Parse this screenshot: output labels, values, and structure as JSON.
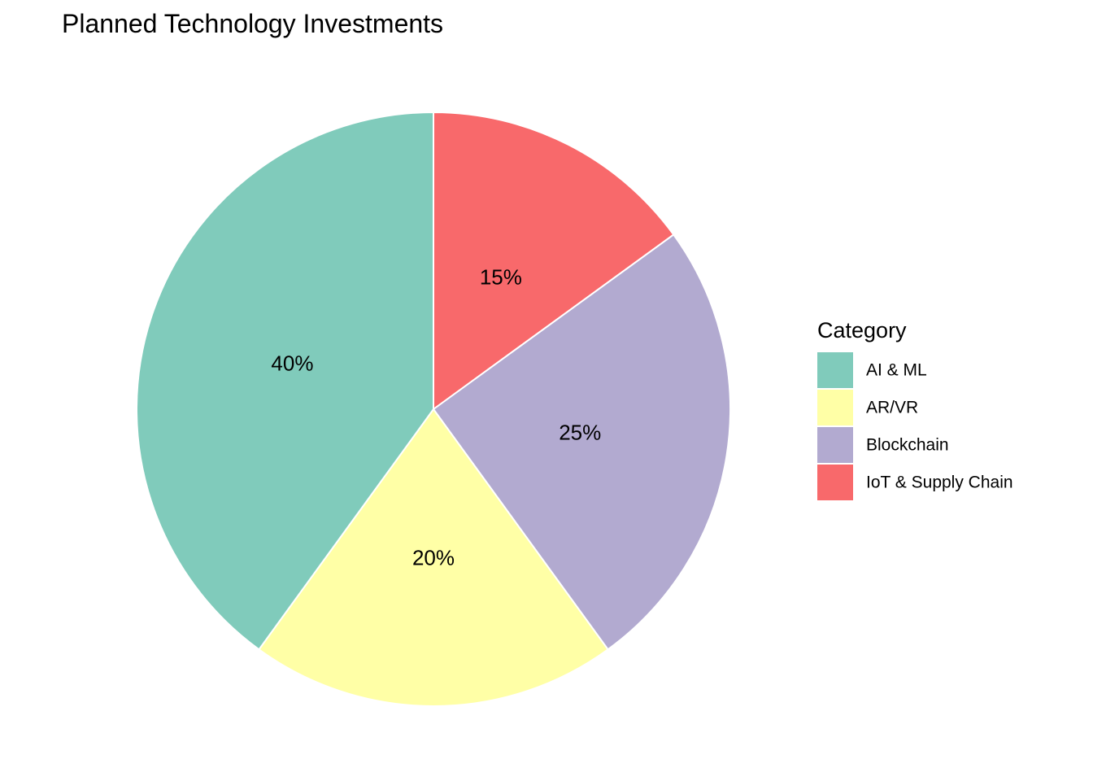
{
  "chart_data": {
    "type": "pie",
    "title": "Planned Technology Investments",
    "legend_title": "Category",
    "legend_position": "right",
    "slice_order": "clockwise from top",
    "slices": [
      {
        "name": "IoT & Supply Chain",
        "value": 15,
        "label": "15%",
        "color": "#F8696B"
      },
      {
        "name": "Blockchain",
        "value": 25,
        "label": "25%",
        "color": "#B2AAD0"
      },
      {
        "name": "AR/VR",
        "value": 20,
        "label": "20%",
        "color": "#FFFFA6"
      },
      {
        "name": "AI & ML",
        "value": 40,
        "label": "40%",
        "color": "#80CBBB"
      }
    ],
    "legend_order": [
      "AI & ML",
      "AR/VR",
      "Blockchain",
      "IoT & Supply Chain"
    ]
  }
}
